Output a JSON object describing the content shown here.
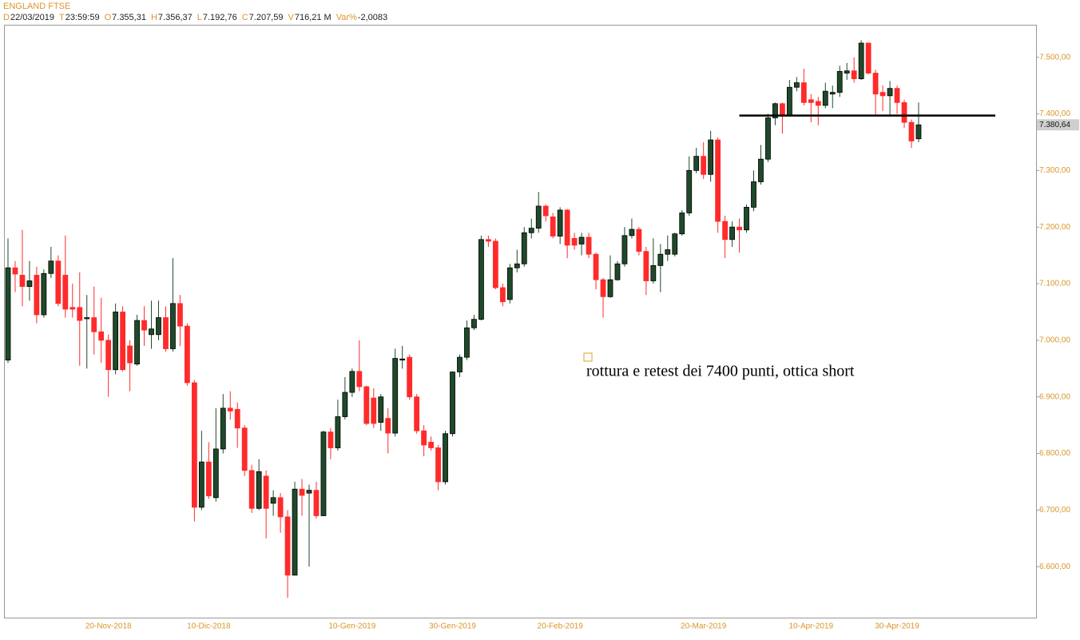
{
  "header": {
    "symbol": "ENGLAND FTSE",
    "info": [
      {
        "key": "D",
        "value": "22/03/2019"
      },
      {
        "key": "T",
        "value": "23:59:59"
      },
      {
        "key": "O",
        "value": "7.355,31"
      },
      {
        "key": "H",
        "value": "7.356,37"
      },
      {
        "key": "L",
        "value": "7.192,76"
      },
      {
        "key": "C",
        "value": "7.207,59"
      },
      {
        "key": "V",
        "value": "716,21 M"
      },
      {
        "key": "Var%",
        "value": "-2,0083"
      }
    ]
  },
  "chart_data": {
    "type": "candlestick",
    "categories": [
      null,
      null,
      null,
      null,
      null,
      null,
      null,
      null,
      null,
      null,
      null,
      null,
      null,
      null,
      "20-Nov-2018",
      null,
      null,
      null,
      null,
      null,
      null,
      null,
      null,
      null,
      null,
      null,
      null,
      null,
      "10-Dic-2018",
      null,
      null,
      null,
      null,
      null,
      null,
      null,
      null,
      null,
      null,
      null,
      null,
      null,
      null,
      null,
      null,
      null,
      null,
      null,
      "10-Gen-2019",
      null,
      null,
      null,
      null,
      null,
      null,
      null,
      null,
      null,
      null,
      null,
      null,
      null,
      "30-Gen-2019",
      null,
      null,
      null,
      null,
      null,
      null,
      null,
      null,
      null,
      null,
      null,
      null,
      null,
      null,
      "20-Feb-2019",
      null,
      null,
      null,
      null,
      null,
      null,
      null,
      null,
      null,
      null,
      null,
      null,
      null,
      null,
      null,
      null,
      null,
      null,
      null,
      "20-Mar-2019",
      null,
      null,
      null,
      null,
      null,
      null,
      null,
      null,
      null,
      null,
      null,
      null,
      null,
      null,
      "10-Apr-2019",
      null,
      null,
      null,
      null,
      null,
      null,
      null,
      null,
      null,
      null,
      null,
      "30-Apr-2019",
      null,
      null,
      null
    ],
    "series": [
      {
        "open": [
          6965,
          7128,
          7115,
          7095,
          7115,
          7045,
          7118,
          7140,
          7115,
          7058,
          7058,
          7038,
          7040,
          7015,
          7000,
          6948,
          7050,
          6990,
          6958,
          7035,
          7010,
          7010,
          7040,
          6985,
          7065,
          7025,
          6925,
          6705,
          6785,
          6722,
          6808,
          6880,
          6878,
          6845,
          6770,
          6703,
          6760,
          6712,
          6722,
          6688,
          6585,
          6737,
          6730,
          6735,
          6690,
          6838,
          6810,
          6865,
          6908,
          6945,
          6918,
          6898,
          6855,
          6862,
          6836,
          6965,
          6970,
          6900,
          6840,
          6820,
          6810,
          6750,
          6835,
          6944,
          6970,
          7022,
          7037,
          7178,
          7175,
          7093,
          7072,
          7128,
          7135,
          7190,
          7198,
          7237,
          7218,
          7184,
          7230,
          7180,
          7170,
          7182,
          7152,
          7107,
          7077,
          7107,
          7135,
          7185,
          7196,
          7157,
          7105,
          7132,
          7152,
          7152,
          7188,
          7225,
          7300,
          7325,
          7293,
          7354,
          7210,
          7178,
          7200,
          7195,
          7235,
          7280,
          7320,
          7393,
          7418,
          7398,
          7447,
          7455,
          7425,
          7422,
          7415,
          7435,
          7438,
          7472,
          7476,
          7462,
          7525,
          7472,
          7438,
          7432,
          7445,
          7420,
          7385,
          7356
        ],
        "high": [
          7180,
          7140,
          7195,
          7140,
          7130,
          7125,
          7165,
          7150,
          7185,
          7100,
          7120,
          7080,
          7095,
          7075,
          7010,
          7065,
          7060,
          7000,
          7045,
          7060,
          7070,
          7070,
          7060,
          7145,
          7080,
          7030,
          6930,
          6840,
          6820,
          6880,
          6905,
          6910,
          6890,
          6850,
          6780,
          6790,
          6770,
          6735,
          6730,
          6700,
          6750,
          6755,
          6745,
          6750,
          6840,
          6845,
          6895,
          6935,
          6950,
          7000,
          6920,
          6915,
          6905,
          6880,
          6985,
          6990,
          6975,
          6905,
          6850,
          6830,
          6815,
          6840,
          6945,
          6975,
          7035,
          7045,
          7185,
          7185,
          7180,
          7100,
          7135,
          7160,
          7200,
          7215,
          7262,
          7240,
          7225,
          7235,
          7232,
          7190,
          7190,
          7190,
          7155,
          7110,
          7150,
          7140,
          7200,
          7215,
          7200,
          7165,
          7180,
          7170,
          7185,
          7190,
          7230,
          7325,
          7340,
          7350,
          7370,
          7358,
          7220,
          7210,
          7215,
          7240,
          7300,
          7345,
          7400,
          7420,
          7420,
          7460,
          7465,
          7480,
          7435,
          7430,
          7455,
          7450,
          7485,
          7490,
          7500,
          7530,
          7526,
          7478,
          7450,
          7458,
          7450,
          7425,
          7390,
          7420
        ],
        "low": [
          6960,
          7085,
          7060,
          7070,
          7030,
          7040,
          7110,
          7060,
          7040,
          7040,
          6955,
          6950,
          6975,
          6960,
          6900,
          6940,
          6945,
          6910,
          6955,
          6990,
          6985,
          7000,
          6980,
          6980,
          6990,
          6920,
          6680,
          6700,
          6720,
          6715,
          6800,
          6860,
          6810,
          6760,
          6695,
          6700,
          6650,
          6690,
          6660,
          6545,
          6585,
          6690,
          6600,
          6685,
          6690,
          6790,
          6805,
          6860,
          6900,
          6910,
          6850,
          6845,
          6840,
          6800,
          6830,
          6950,
          6895,
          6835,
          6795,
          6805,
          6735,
          6745,
          6830,
          6935,
          6965,
          7018,
          7035,
          7165,
          7090,
          7060,
          7065,
          7120,
          7130,
          7180,
          7190,
          7210,
          7180,
          7170,
          7145,
          7160,
          7150,
          7145,
          7090,
          7040,
          7075,
          7105,
          7130,
          7180,
          7150,
          7080,
          7100,
          7085,
          7140,
          7148,
          7185,
          7220,
          7295,
          7285,
          7280,
          7190,
          7145,
          7165,
          7155,
          7190,
          7228,
          7275,
          7315,
          7380,
          7365,
          7395,
          7440,
          7415,
          7385,
          7380,
          7410,
          7410,
          7430,
          7460,
          7455,
          7460,
          7470,
          7395,
          7405,
          7395,
          7400,
          7375,
          7340,
          7350
        ],
        "close": [
          7128,
          7117,
          7095,
          7105,
          7045,
          7118,
          7140,
          7065,
          7055,
          7055,
          7035,
          7040,
          7015,
          7000,
          6948,
          7050,
          6948,
          6960,
          7035,
          7018,
          7020,
          7040,
          6985,
          7065,
          7025,
          6925,
          6705,
          6785,
          6725,
          6808,
          6880,
          6875,
          6845,
          6770,
          6703,
          6768,
          6703,
          6722,
          6688,
          6585,
          6737,
          6726,
          6735,
          6690,
          6838,
          6810,
          6865,
          6908,
          6945,
          6918,
          6853,
          6853,
          6900,
          6836,
          6968,
          6967,
          6900,
          6840,
          6815,
          6810,
          6750,
          6835,
          6944,
          6970,
          7022,
          7037,
          7178,
          7175,
          7093,
          7068,
          7128,
          7135,
          7190,
          7198,
          7237,
          7220,
          7184,
          7230,
          7168,
          7168,
          7182,
          7152,
          7107,
          7077,
          7107,
          7135,
          7185,
          7196,
          7157,
          7105,
          7132,
          7152,
          7160,
          7188,
          7225,
          7300,
          7325,
          7293,
          7354,
          7210,
          7178,
          7200,
          7195,
          7235,
          7280,
          7320,
          7393,
          7418,
          7398,
          7447,
          7455,
          7420,
          7420,
          7415,
          7440,
          7438,
          7475,
          7476,
          7462,
          7525,
          7472,
          7435,
          7432,
          7445,
          7420,
          7385,
          7352,
          7380.64
        ]
      }
    ],
    "up_color": "#1e4a2a",
    "down_color": "#ff2b2b",
    "ylim": [
      6510,
      7556
    ],
    "yticks": [
      {
        "value": 6600,
        "label": "6.600,00"
      },
      {
        "value": 6700,
        "label": "6.700,00"
      },
      {
        "value": 6800,
        "label": "6.800,00"
      },
      {
        "value": 6900,
        "label": "6.900,00"
      },
      {
        "value": 7000,
        "label": "7.000,00"
      },
      {
        "value": 7100,
        "label": "7.100,00"
      },
      {
        "value": 7200,
        "label": "7.200,00"
      },
      {
        "value": 7300,
        "label": "7.300,00"
      },
      {
        "value": 7400,
        "label": "7.400,00"
      },
      {
        "value": 7500,
        "label": "7.500,00"
      }
    ],
    "last_price": {
      "value": 7380.64,
      "label": "7.380,64"
    },
    "hline": {
      "value": 7397,
      "color": "#000000"
    },
    "annotation": "rottura e retest dei 7400 punti, ottica short"
  }
}
